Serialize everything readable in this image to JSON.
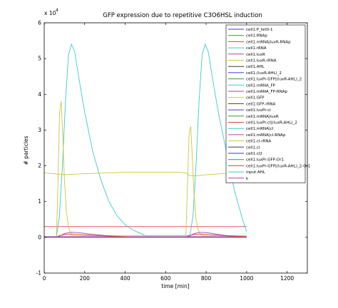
{
  "chart_data": {
    "type": "line",
    "title": "GFP expression due to repetitive C3O6HSL induction",
    "xlabel": "time [min]",
    "ylabel": "# particles",
    "y_multiplier": "x 10",
    "y_exponent": "4",
    "xlim": [
      0,
      1300
    ],
    "ylim": [
      -1,
      6
    ],
    "xticks": [
      "0",
      "200",
      "400",
      "600",
      "800",
      "1000",
      "1200"
    ],
    "yticks": [
      "-1",
      "0",
      "1",
      "2",
      "3",
      "4",
      "5",
      "6"
    ],
    "grid": false,
    "legend_position": "top-right",
    "series": [
      {
        "name": "cell1.P_tet0-1",
        "color": "#3a3ad8",
        "x": [
          0,
          1000
        ],
        "y": [
          0,
          0
        ]
      },
      {
        "name": "cell1.RNAp",
        "color": "#2ca02c",
        "x": [
          0,
          1000
        ],
        "y": [
          0,
          0
        ]
      },
      {
        "name": "cell1.mRNA|luxR-RNAp",
        "color": "#e04040",
        "x": [
          0,
          1000
        ],
        "y": [
          0.3,
          0.3
        ]
      },
      {
        "name": "cell1.rRNA",
        "color": "#40c8c8",
        "x": [
          0,
          60,
          75,
          90,
          105,
          120,
          135,
          150,
          170,
          200,
          240,
          280,
          320,
          360,
          400,
          440,
          480,
          500,
          700,
          720,
          735,
          750,
          765,
          780,
          795,
          810,
          830,
          860,
          900,
          940,
          980,
          1000
        ],
        "y": [
          0,
          0,
          0.6,
          2.0,
          3.8,
          5.1,
          5.4,
          5.2,
          4.5,
          3.5,
          2.4,
          1.6,
          1.0,
          0.6,
          0.35,
          0.2,
          0.1,
          0.05,
          0.05,
          0.05,
          0.6,
          2.0,
          3.8,
          5.1,
          5.4,
          5.2,
          4.5,
          3.5,
          2.4,
          1.3,
          0.5,
          0.15
        ]
      },
      {
        "name": "cell1.luxR",
        "color": "#b040b0",
        "x": [
          0,
          1000
        ],
        "y": [
          0.02,
          0.02
        ]
      },
      {
        "name": "cell1.luxR-rRNA",
        "color": "#c8c840",
        "x": [
          0,
          1000
        ],
        "y": [
          0.01,
          0.01
        ]
      },
      {
        "name": "cell1.AHL",
        "color": "#404040",
        "x": [
          0,
          1000
        ],
        "y": [
          0,
          0
        ]
      },
      {
        "name": "cell1.(luxR-AHL)_2",
        "color": "#3a3ad8",
        "x": [
          0,
          1000
        ],
        "y": [
          0,
          0
        ]
      },
      {
        "name": "cell1.luxPr-GFP|(luxR-AHL)_2",
        "color": "#2ca02c",
        "x": [
          0,
          1000
        ],
        "y": [
          0,
          0
        ]
      },
      {
        "name": "cell1.mRNA_FP",
        "color": "#40c8c8",
        "x": [
          0,
          1000
        ],
        "y": [
          0,
          0
        ]
      },
      {
        "name": "cell1.mRNA_FP-RNAp",
        "color": "#b040b0",
        "x": [
          0,
          1000
        ],
        "y": [
          0,
          0
        ]
      },
      {
        "name": "cell1.GFP",
        "color": "#c8c840",
        "x": [
          0,
          60,
          68,
          76,
          84,
          92,
          100,
          110,
          120,
          130,
          140,
          500,
          700,
          708,
          716,
          724,
          732,
          740,
          750,
          760,
          770,
          780,
          1000
        ],
        "y": [
          0,
          0,
          1.5,
          3.5,
          3.8,
          2.8,
          1.6,
          0.7,
          0.3,
          0.12,
          0.05,
          0.05,
          0.05,
          1.5,
          2.9,
          3.1,
          2.2,
          1.2,
          0.5,
          0.22,
          0.1,
          0.05,
          0.05
        ]
      },
      {
        "name": "cell1.GFP-rRNA",
        "color": "#404040",
        "x": [
          0,
          1000
        ],
        "y": [
          0,
          0
        ]
      },
      {
        "name": "cell1.luxPr-cI",
        "color": "#3a3ad8",
        "x": [
          0,
          1000
        ],
        "y": [
          0,
          0
        ]
      },
      {
        "name": "cell1.mRNA|luxR",
        "color": "#2ca02c",
        "x": [
          0,
          1000
        ],
        "y": [
          0,
          0
        ]
      },
      {
        "name": "cell1.luxPr-cI|(luxR-AHL)_2",
        "color": "#e04040",
        "x": [
          0,
          1000
        ],
        "y": [
          0,
          0
        ]
      },
      {
        "name": "cell1.mRNA|cI",
        "color": "#40c8c8",
        "x": [
          0,
          1000
        ],
        "y": [
          0,
          0
        ]
      },
      {
        "name": "cell1.mRNA|cI-RNAp",
        "color": "#b040b0",
        "x": [
          0,
          60,
          80,
          100,
          120,
          140,
          170,
          200,
          240,
          280,
          320,
          360,
          400,
          500,
          700,
          720,
          740,
          760,
          780,
          800,
          830,
          860,
          900,
          940,
          980,
          1000
        ],
        "y": [
          0,
          0,
          0.05,
          0.1,
          0.13,
          0.14,
          0.13,
          0.11,
          0.08,
          0.06,
          0.04,
          0.02,
          0.01,
          0,
          0,
          0.05,
          0.1,
          0.13,
          0.14,
          0.13,
          0.11,
          0.08,
          0.05,
          0.03,
          0.01,
          0
        ]
      },
      {
        "name": "cell1.cI-rRNA",
        "color": "#c8c840",
        "x": [
          0,
          100,
          200,
          300,
          400,
          500,
          600,
          660,
          700,
          720,
          760,
          800,
          900,
          1000
        ],
        "y": [
          1.8,
          1.75,
          1.78,
          1.8,
          1.82,
          1.82,
          1.82,
          1.82,
          1.8,
          1.72,
          1.72,
          1.75,
          1.79,
          1.8
        ]
      },
      {
        "name": "cell1.cI",
        "color": "#404040",
        "x": [
          0,
          1000
        ],
        "y": [
          0,
          0
        ]
      },
      {
        "name": "cell1.cI2",
        "color": "#3a3ad8",
        "x": [
          0,
          1000
        ],
        "y": [
          0,
          0
        ]
      },
      {
        "name": "cell1.luxPr-GFP-Or1",
        "color": "#2ca02c",
        "x": [
          0,
          1000
        ],
        "y": [
          0,
          0
        ]
      },
      {
        "name": "cell1.luxPr-GFP|(luxR-AHL)_2-Or1",
        "color": "#e04040",
        "x": [
          0,
          60,
          75,
          90,
          100,
          140,
          200,
          300,
          400,
          500,
          700,
          715,
          730,
          740,
          780,
          840,
          900,
          1000
        ],
        "y": [
          0,
          0,
          0.05,
          0.06,
          0.08,
          0.09,
          0.07,
          0.04,
          0.02,
          0,
          0,
          0.05,
          0.06,
          0.08,
          0.09,
          0.07,
          0.04,
          0.02
        ]
      },
      {
        "name": "input.AHL",
        "color": "#40c8c8",
        "x": [
          0,
          1000
        ],
        "y": [
          0,
          0
        ]
      },
      {
        "name": "k",
        "color": "#b040b0",
        "x": [
          0,
          1000
        ],
        "y": [
          0,
          0
        ]
      }
    ]
  }
}
